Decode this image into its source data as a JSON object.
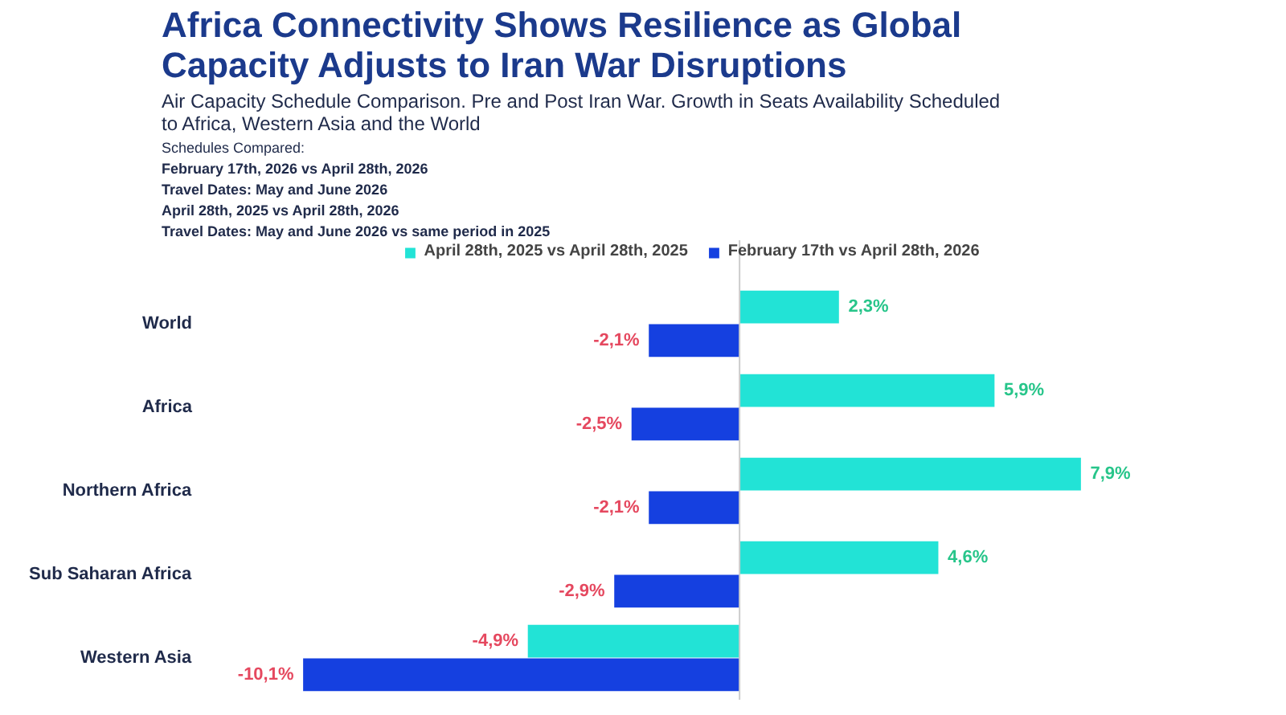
{
  "chart_data": {
    "type": "bar",
    "orientation": "horizontal",
    "title": "Africa Connectivity Shows Resilience as Global Capacity Adjusts to Iran War Disruptions",
    "subtitle": "Air Capacity Schedule Comparison. Pre and Post Iran War. Growth in Seats Availability Scheduled to Africa, Western Asia and the World",
    "annotations": [
      "Schedules Compared:",
      "February 17th, 2026 vs April 28th, 2026",
      "Travel Dates: May and June 2026",
      "April 28th, 2025 vs April 28th, 2026",
      "Travel Dates: May and June 2026 vs same period in 2025"
    ],
    "categories": [
      "World",
      "Africa",
      "Northern Africa",
      "Sub Saharan Africa",
      "Western Asia"
    ],
    "series": [
      {
        "name": "April 28th, 2025 vs April 28th, 2025",
        "color": "#22e3d6",
        "values": [
          2.3,
          5.9,
          7.9,
          4.6,
          -4.9
        ],
        "value_labels": [
          "2,3%",
          "5,9%",
          "7,9%",
          "4,6%",
          "-4,9%"
        ]
      },
      {
        "name": "February 17th vs April 28th, 2026",
        "color": "#1540e0",
        "values": [
          -2.1,
          -2.5,
          -2.1,
          -2.9,
          -10.1
        ],
        "value_labels": [
          "-2,1%",
          "-2,5%",
          "-2,1%",
          "-2,9%",
          "-10,1%"
        ]
      }
    ],
    "legend": "top",
    "grid": false
  }
}
